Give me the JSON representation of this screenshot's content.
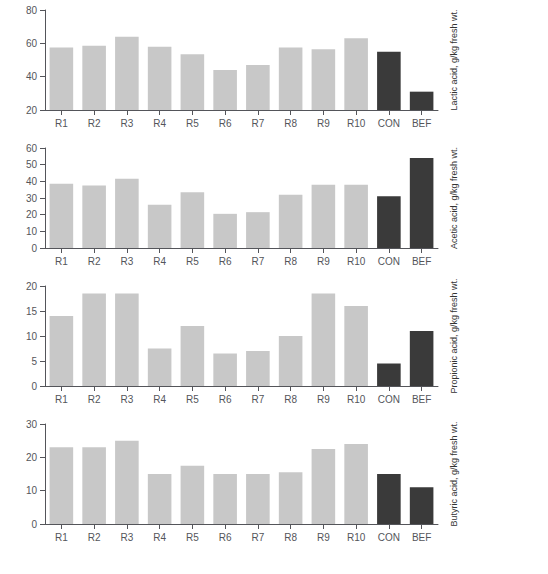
{
  "chart_data": [
    {
      "type": "bar",
      "categories": [
        "R1",
        "R2",
        "R3",
        "R4",
        "R5",
        "R6",
        "R7",
        "R8",
        "R9",
        "R10",
        "CON",
        "BEF"
      ],
      "values": [
        57.5,
        58.5,
        64,
        58,
        53.5,
        44,
        47,
        57.5,
        56.5,
        63,
        55,
        31
      ],
      "colors": [
        "#c8c8c8",
        "#c8c8c8",
        "#c8c8c8",
        "#c8c8c8",
        "#c8c8c8",
        "#c8c8c8",
        "#c8c8c8",
        "#c8c8c8",
        "#c8c8c8",
        "#c8c8c8",
        "#3a3a3a",
        "#3a3a3a"
      ],
      "ylabel": "Lactic acid, g/kg fresh wt.",
      "ylim": [
        20,
        80
      ],
      "yticks": [
        20,
        40,
        60,
        80
      ],
      "grid": false
    },
    {
      "type": "bar",
      "categories": [
        "R1",
        "R2",
        "R3",
        "R4",
        "R5",
        "R6",
        "R7",
        "R8",
        "R9",
        "R10",
        "CON",
        "BEF"
      ],
      "values": [
        38.5,
        37.5,
        41.5,
        26,
        33.5,
        20.5,
        21.5,
        32,
        38,
        38,
        31,
        54
      ],
      "colors": [
        "#c8c8c8",
        "#c8c8c8",
        "#c8c8c8",
        "#c8c8c8",
        "#c8c8c8",
        "#c8c8c8",
        "#c8c8c8",
        "#c8c8c8",
        "#c8c8c8",
        "#c8c8c8",
        "#3a3a3a",
        "#3a3a3a"
      ],
      "ylabel": "Acetic acid, g/kg fresh wt.",
      "ylim": [
        0,
        60
      ],
      "yticks": [
        0,
        10,
        20,
        30,
        40,
        50,
        60
      ],
      "grid": false
    },
    {
      "type": "bar",
      "categories": [
        "R1",
        "R2",
        "R3",
        "R4",
        "R5",
        "R6",
        "R7",
        "R8",
        "R9",
        "R10",
        "CON",
        "BEF"
      ],
      "values": [
        14,
        18.5,
        18.5,
        7.5,
        12,
        6.5,
        7,
        10,
        18.5,
        16,
        4.5,
        11
      ],
      "colors": [
        "#c8c8c8",
        "#c8c8c8",
        "#c8c8c8",
        "#c8c8c8",
        "#c8c8c8",
        "#c8c8c8",
        "#c8c8c8",
        "#c8c8c8",
        "#c8c8c8",
        "#c8c8c8",
        "#3a3a3a",
        "#3a3a3a"
      ],
      "ylabel": "Propionic acid, g/kg fresh wt.",
      "ylim": [
        0,
        20
      ],
      "yticks": [
        0,
        5,
        10,
        15,
        20
      ],
      "grid": false
    },
    {
      "type": "bar",
      "categories": [
        "R1",
        "R2",
        "R3",
        "R4",
        "R5",
        "R6",
        "R7",
        "R8",
        "R9",
        "R10",
        "CON",
        "BEF"
      ],
      "values": [
        23,
        23,
        25,
        15,
        17.5,
        15,
        15,
        15.5,
        22.5,
        24,
        15,
        11
      ],
      "colors": [
        "#c8c8c8",
        "#c8c8c8",
        "#c8c8c8",
        "#c8c8c8",
        "#c8c8c8",
        "#c8c8c8",
        "#c8c8c8",
        "#c8c8c8",
        "#c8c8c8",
        "#c8c8c8",
        "#3a3a3a",
        "#3a3a3a"
      ],
      "ylabel": "Butyric acid, g/kg fresh wt.",
      "ylim": [
        0,
        30
      ],
      "yticks": [
        0,
        10,
        20,
        30
      ],
      "grid": false
    }
  ]
}
